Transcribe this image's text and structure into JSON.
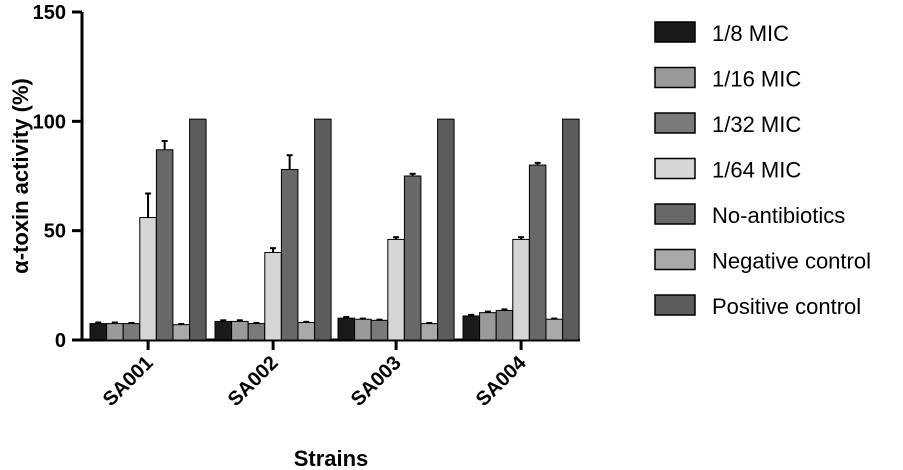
{
  "chart_data": {
    "type": "bar",
    "title": "",
    "xlabel": "Strains",
    "ylabel": "α-toxin activity (%)",
    "ylim": [
      0,
      150
    ],
    "yticks": [
      "0",
      "50",
      "100",
      "150"
    ],
    "grid": false,
    "legend_position": "right",
    "categories": [
      "SA001",
      "SA002",
      "SA003",
      "SA004"
    ],
    "series": [
      {
        "name": "1/8 MIC",
        "color": "#1a1a1a",
        "values": [
          7.5,
          8.5,
          10,
          11
        ],
        "errors": [
          0.5,
          0.5,
          0.5,
          0.5
        ]
      },
      {
        "name": "1/16 MIC",
        "color": "#9a9a9a",
        "values": [
          7.5,
          8.5,
          9.5,
          12.5
        ],
        "errors": [
          0.5,
          0.5,
          0.3,
          0.5
        ]
      },
      {
        "name": "1/32 MIC",
        "color": "#7a7a7a",
        "values": [
          7.5,
          7.5,
          9,
          13.5
        ],
        "errors": [
          0.3,
          0.3,
          0.3,
          0.5
        ]
      },
      {
        "name": "1/64 MIC",
        "color": "#d6d6d6",
        "values": [
          56,
          40,
          46,
          46
        ],
        "errors": [
          11,
          2,
          1,
          1
        ]
      },
      {
        "name": "No-antibiotics",
        "color": "#686868",
        "values": [
          87,
          78,
          75,
          80
        ],
        "errors": [
          4,
          6.5,
          1,
          1
        ]
      },
      {
        "name": "Negative control",
        "color": "#a9a9a9",
        "values": [
          7,
          8,
          7.5,
          9.5
        ],
        "errors": [
          0.3,
          0.3,
          0.3,
          0.3
        ]
      },
      {
        "name": "Positive control",
        "color": "#5c5c5c",
        "values": [
          101,
          101,
          101,
          101
        ],
        "errors": [
          0,
          0,
          0,
          0
        ]
      }
    ]
  }
}
